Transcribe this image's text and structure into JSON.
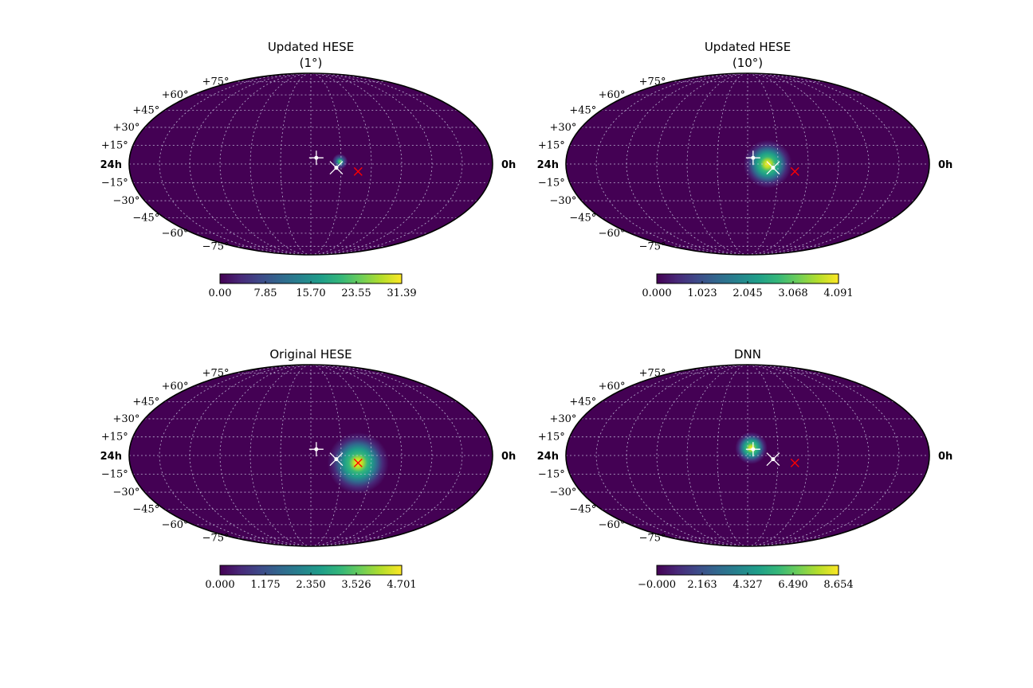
{
  "chart_data": [
    {
      "type": "heatmap",
      "projection": "mollweide",
      "title": "Updated HESE",
      "subtitle": "(1°)",
      "colormap": "viridis",
      "x_labels": [
        "24h",
        "0h"
      ],
      "y_ticks": [
        "+75°",
        "+60°",
        "+45°",
        "+30°",
        "+15°",
        "−15°",
        "−30°",
        "−45°",
        "−60°",
        "−75°"
      ],
      "colorbar": {
        "min": 0.0,
        "max": 31.39,
        "ticks": [
          "0.00",
          "7.85",
          "15.70",
          "23.55",
          "31.39"
        ]
      },
      "hotspot": {
        "ra_offset": 0.16,
        "dec": 2.0,
        "sigma": 2.4,
        "amplitude": 0.85
      },
      "markers": [
        {
          "kind": "plus",
          "color": "#ffffff",
          "ra_offset": 0.03,
          "dec": 5.0
        },
        {
          "kind": "x",
          "color": "#ffffff",
          "ra_offset": 0.14,
          "dec": -3.0
        },
        {
          "kind": "x",
          "color": "#ff0000",
          "ra_offset": 0.26,
          "dec": -6.0
        }
      ]
    },
    {
      "type": "heatmap",
      "projection": "mollweide",
      "title": "Updated HESE",
      "subtitle": "(10°)",
      "colormap": "viridis",
      "x_labels": [
        "24h",
        "0h"
      ],
      "y_ticks": [
        "+75°",
        "+60°",
        "+45°",
        "+30°",
        "+15°",
        "−15°",
        "−30°",
        "−45°",
        "−60°",
        "−75°"
      ],
      "colorbar": {
        "min": 0.0,
        "max": 4.091,
        "ticks": [
          "0.000",
          "1.023",
          "2.045",
          "3.068",
          "4.091"
        ]
      },
      "hotspot": {
        "ra_offset": 0.11,
        "dec": 0.0,
        "sigma": 7.5,
        "amplitude": 1.0
      },
      "markers": [
        {
          "kind": "plus",
          "color": "#ffffff",
          "ra_offset": 0.03,
          "dec": 5.0
        },
        {
          "kind": "x",
          "color": "#ffffff",
          "ra_offset": 0.14,
          "dec": -3.0
        },
        {
          "kind": "x",
          "color": "#ff0000",
          "ra_offset": 0.26,
          "dec": -6.0
        }
      ]
    },
    {
      "type": "heatmap",
      "projection": "mollweide",
      "title": "Original HESE",
      "subtitle": "",
      "colormap": "viridis",
      "x_labels": [
        "24h",
        "0h"
      ],
      "y_ticks": [
        "+75°",
        "+60°",
        "+45°",
        "+30°",
        "+15°",
        "−15°",
        "−30°",
        "−45°",
        "−60°",
        "−75°"
      ],
      "colorbar": {
        "min": 0.0,
        "max": 4.701,
        "ticks": [
          "0.000",
          "1.175",
          "2.350",
          "3.526",
          "4.701"
        ]
      },
      "hotspot": {
        "ra_offset": 0.26,
        "dec": -6.0,
        "sigma": 9.5,
        "amplitude": 1.0
      },
      "markers": [
        {
          "kind": "plus",
          "color": "#ffffff",
          "ra_offset": 0.03,
          "dec": 5.0
        },
        {
          "kind": "x",
          "color": "#ffffff",
          "ra_offset": 0.14,
          "dec": -3.0
        },
        {
          "kind": "x",
          "color": "#ff0000",
          "ra_offset": 0.26,
          "dec": -6.0
        }
      ]
    },
    {
      "type": "heatmap",
      "projection": "mollweide",
      "title": "DNN",
      "subtitle": "",
      "colormap": "viridis",
      "x_labels": [
        "24h",
        "0h"
      ],
      "y_ticks": [
        "+75°",
        "+60°",
        "+45°",
        "+30°",
        "+15°",
        "−15°",
        "−30°",
        "−45°",
        "−60°",
        "−75°"
      ],
      "colorbar": {
        "min": 0.0,
        "max": 8.654,
        "ticks": [
          "−0.000",
          "2.163",
          "4.327",
          "6.490",
          "8.654"
        ]
      },
      "hotspot": {
        "ra_offset": 0.02,
        "dec": 6.0,
        "sigma": 5.0,
        "amplitude": 1.0
      },
      "markers": [
        {
          "kind": "plus",
          "color": "#ffffff",
          "ra_offset": 0.03,
          "dec": 5.0
        },
        {
          "kind": "x",
          "color": "#ffffff",
          "ra_offset": 0.14,
          "dec": -3.0
        },
        {
          "kind": "x",
          "color": "#ff0000",
          "ra_offset": 0.26,
          "dec": -6.0
        }
      ]
    }
  ]
}
